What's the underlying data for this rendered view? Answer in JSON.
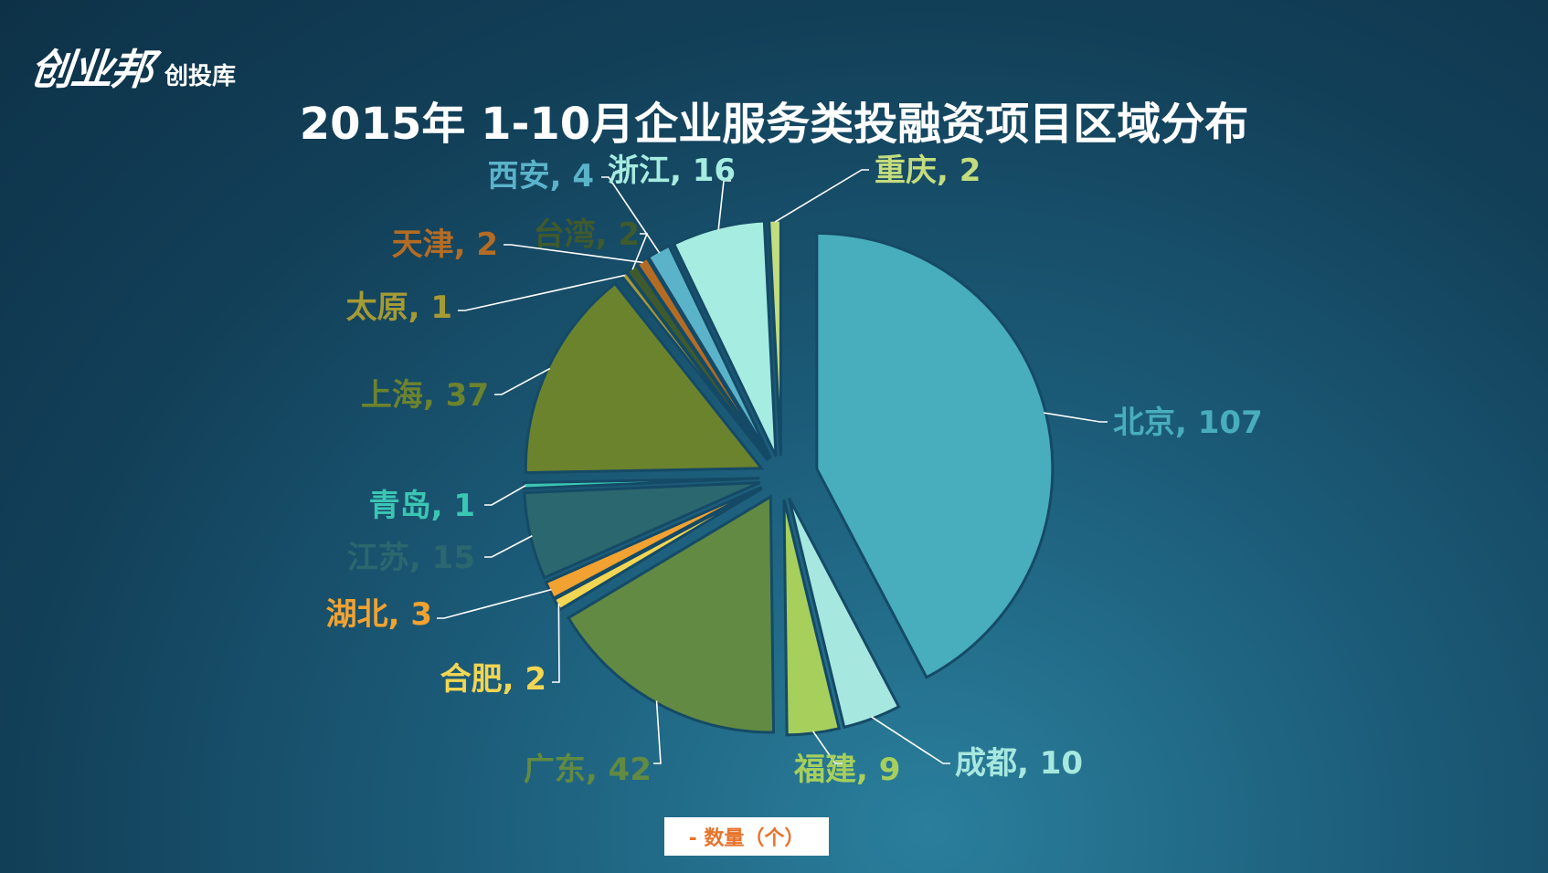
{
  "brand": {
    "logo": "创业邦",
    "sub": "创投库"
  },
  "title": "2015年 1-10月企业服务类投融资项目区域分布",
  "legend_label": "- 数量（个）",
  "colors": {
    "background": "#154a66",
    "title": "#ffffff",
    "legend_text": "#e8732a"
  },
  "chart_data": {
    "type": "pie",
    "title": "2015年 1-10月企业服务类投融资项目区域分布",
    "legend": [
      "数量（个）"
    ],
    "legend_position": "bottom",
    "slices": [
      {
        "label": "北京, 107",
        "name": "北京",
        "value": 107,
        "color": "#48adbc"
      },
      {
        "label": "成都, 10",
        "name": "成都",
        "value": 10,
        "color": "#a6e8df"
      },
      {
        "label": "福建, 9",
        "name": "福建",
        "value": 9,
        "color": "#a6cf5c"
      },
      {
        "label": "广东, 42",
        "name": "广东",
        "value": 42,
        "color": "#628a42"
      },
      {
        "label": "合肥, 2",
        "name": "合肥",
        "value": 2,
        "color": "#f2d653"
      },
      {
        "label": "湖北, 3",
        "name": "湖北",
        "value": 3,
        "color": "#f2a231"
      },
      {
        "label": "江苏, 15",
        "name": "江苏",
        "value": 15,
        "color": "#2b676e"
      },
      {
        "label": "青岛, 1",
        "name": "青岛",
        "value": 1,
        "color": "#3bc6b4"
      },
      {
        "label": "上海, 37",
        "name": "上海",
        "value": 37,
        "color": "#6c832e"
      },
      {
        "label": "太原, 1",
        "name": "太原",
        "value": 1,
        "color": "#a69a35"
      },
      {
        "label": "台湾, 2",
        "name": "台湾",
        "value": 2,
        "color": "#3f5a2d"
      },
      {
        "label": "天津, 2",
        "name": "天津",
        "value": 2,
        "color": "#b46c24"
      },
      {
        "label": "西安, 4",
        "name": "西安",
        "value": 4,
        "color": "#5bb3c9"
      },
      {
        "label": "浙江, 16",
        "name": "浙江",
        "value": 16,
        "color": "#a6ece0"
      },
      {
        "label": "重庆, 2",
        "name": "重庆",
        "value": 2,
        "color": "#c3dc7e"
      }
    ]
  }
}
